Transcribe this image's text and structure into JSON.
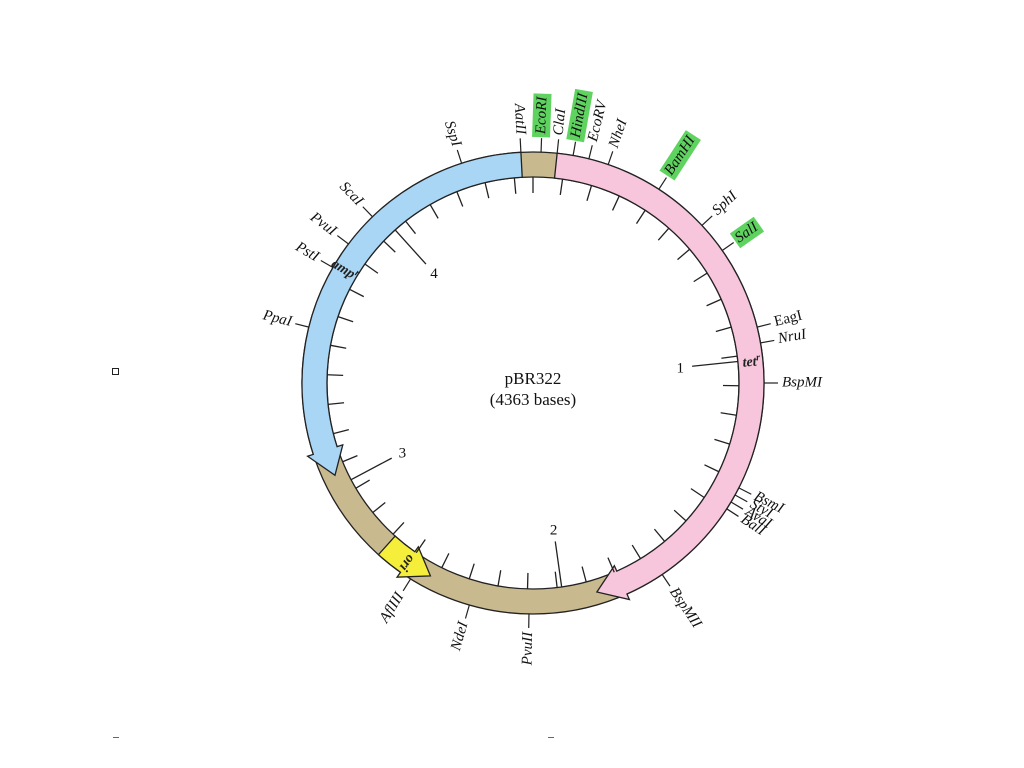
{
  "plasmid": {
    "name": "pBR322",
    "size_label": "(4363 bases)"
  },
  "colors": {
    "backbone": "#c8b98f",
    "amp": "#a9d6f5",
    "tet": "#f8c6dc",
    "ori": "#f5ee3a",
    "highlight": "#5fd35f",
    "stroke": "#222222"
  },
  "segments": [
    {
      "name": "backbone",
      "color_key": "backbone",
      "start": 0,
      "end": 360
    },
    {
      "name": "tet-gene",
      "color_key": "tet",
      "start": 6,
      "end": 163,
      "arrow": "cw",
      "label": "tet",
      "label_sup": "r"
    },
    {
      "name": "amp-gene",
      "color_key": "amp",
      "start": 245,
      "end": 357,
      "arrow": "ccw",
      "label": "amp",
      "label_sup": "r"
    },
    {
      "name": "ori",
      "color_key": "ori",
      "start": 208,
      "end": 222,
      "arrow": "ccw",
      "label": "ori"
    }
  ],
  "position_marks": [
    {
      "label": "1",
      "angle": 84
    },
    {
      "label": "2",
      "angle": 172
    },
    {
      "label": "3",
      "angle": 242
    },
    {
      "label": "4",
      "angle": 318
    }
  ],
  "restriction_sites": [
    {
      "name": "EcoRI",
      "angle": 2,
      "highlight": true
    },
    {
      "name": "ClaI",
      "angle": 6,
      "highlight": false
    },
    {
      "name": "HindIII",
      "angle": 10,
      "highlight": true
    },
    {
      "name": "EcoRV",
      "angle": 14,
      "highlight": false
    },
    {
      "name": "NheI",
      "angle": 19,
      "highlight": false
    },
    {
      "name": "BamHI",
      "angle": 33,
      "highlight": true
    },
    {
      "name": "SphI",
      "angle": 47,
      "highlight": false
    },
    {
      "name": "SalI",
      "angle": 55,
      "highlight": true
    },
    {
      "name": "EagI",
      "angle": 76,
      "highlight": false,
      "italic": false
    },
    {
      "name": "NruI",
      "angle": 80,
      "highlight": false
    },
    {
      "name": "BspMI",
      "angle": 90,
      "highlight": false
    },
    {
      "name": "BsmI",
      "angle": 117,
      "highlight": false
    },
    {
      "name": "StyI",
      "angle": 119,
      "highlight": false
    },
    {
      "name": "AvaI",
      "angle": 121,
      "highlight": false
    },
    {
      "name": "BalI",
      "angle": 123,
      "highlight": false
    },
    {
      "name": "BspMII",
      "angle": 146,
      "highlight": false
    },
    {
      "name": "PvuII",
      "angle": 181,
      "highlight": false
    },
    {
      "name": "NdeI",
      "angle": 196,
      "highlight": false
    },
    {
      "name": "AflIII",
      "angle": 212,
      "highlight": false
    },
    {
      "name": "PpaI",
      "angle": 284,
      "highlight": false
    },
    {
      "name": "PstI",
      "angle": 300,
      "highlight": false
    },
    {
      "name": "PvuI",
      "angle": 307,
      "highlight": false
    },
    {
      "name": "ScaI",
      "angle": 316,
      "highlight": false
    },
    {
      "name": "SspI",
      "angle": 342,
      "highlight": false
    },
    {
      "name": "AatII",
      "angle": 357,
      "highlight": false
    }
  ]
}
